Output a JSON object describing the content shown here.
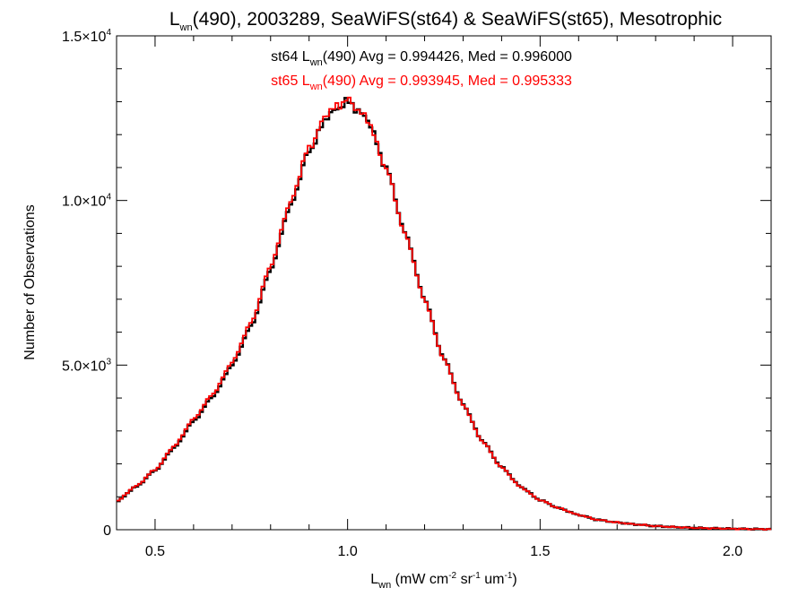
{
  "chart_data": {
    "type": "line",
    "title": {
      "main": "L",
      "sub": "wn",
      "rest": "(490), 2003289, SeaWiFS(st64) & SeaWiFS(st65), Mesotrophic"
    },
    "xlabel": {
      "main": "L",
      "sub": "wn",
      "unit_open": " (mW cm",
      "sup1": "-2",
      "unit_mid": " sr",
      "sup2": "-1",
      "unit_mid2": " um",
      "sup3": "-1",
      "unit_close": ")"
    },
    "ylabel": "Number of Observations",
    "xlim": [
      0.4,
      2.1
    ],
    "ylim": [
      0,
      15000
    ],
    "xticks": [
      {
        "value": 0.5,
        "label": "0.5"
      },
      {
        "value": 1.0,
        "label": "1.0"
      },
      {
        "value": 1.5,
        "label": "1.5"
      },
      {
        "value": 2.0,
        "label": "2.0"
      }
    ],
    "yticks": [
      {
        "value": 0,
        "base": "0",
        "exp": ""
      },
      {
        "value": 5000,
        "base": "5.0×10",
        "exp": "3"
      },
      {
        "value": 10000,
        "base": "1.0×10",
        "exp": "4"
      },
      {
        "value": 15000,
        "base": "1.5×10",
        "exp": "4"
      }
    ],
    "annotations": [
      {
        "pre": "st64 L",
        "sub": "wn",
        "post": "(490) Avg = 0.994426, Med = 0.996000",
        "color": "#000000"
      },
      {
        "pre": "st65 L",
        "sub": "wn",
        "post": "(490) Avg = 0.993945, Med = 0.995333",
        "color": "#ff0000"
      }
    ],
    "series": [
      {
        "name": "st64",
        "color": "#000000",
        "x": [
          0.4,
          0.45,
          0.5,
          0.55,
          0.6,
          0.65,
          0.7,
          0.75,
          0.8,
          0.85,
          0.9,
          0.95,
          1.0,
          1.05,
          1.1,
          1.15,
          1.2,
          1.25,
          1.3,
          1.35,
          1.4,
          1.45,
          1.5,
          1.55,
          1.6,
          1.65,
          1.7,
          1.75,
          1.8,
          1.85,
          1.9,
          1.95,
          2.0,
          2.05,
          2.1
        ],
        "values": [
          850,
          1300,
          1800,
          2500,
          3300,
          4050,
          5000,
          6200,
          7900,
          9800,
          11500,
          12600,
          13000,
          12500,
          11000,
          9000,
          7000,
          5200,
          3800,
          2700,
          1900,
          1300,
          900,
          650,
          450,
          300,
          220,
          160,
          110,
          80,
          55,
          40,
          30,
          20,
          15
        ]
      },
      {
        "name": "st65",
        "color": "#ff0000",
        "x": [
          0.4,
          0.45,
          0.5,
          0.55,
          0.6,
          0.65,
          0.7,
          0.75,
          0.8,
          0.85,
          0.9,
          0.95,
          1.0,
          1.05,
          1.1,
          1.15,
          1.2,
          1.25,
          1.3,
          1.35,
          1.4,
          1.45,
          1.5,
          1.55,
          1.6,
          1.65,
          1.7,
          1.75,
          1.8,
          1.85,
          1.9,
          1.95,
          2.0,
          2.05,
          2.1
        ],
        "values": [
          860,
          1320,
          1820,
          2540,
          3360,
          4120,
          5080,
          6300,
          8000,
          9900,
          11600,
          12700,
          13050,
          12500,
          10980,
          8970,
          6980,
          5180,
          3790,
          2690,
          1890,
          1290,
          900,
          650,
          450,
          300,
          220,
          160,
          110,
          80,
          55,
          40,
          30,
          20,
          15
        ]
      }
    ]
  }
}
